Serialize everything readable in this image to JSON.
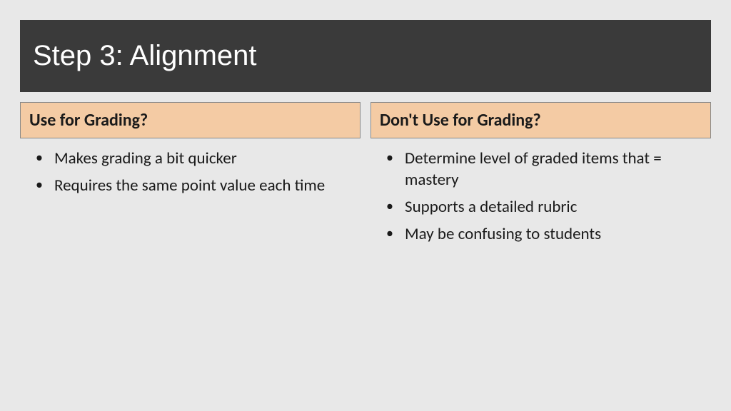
{
  "slide": {
    "title": "Step 3:  Alignment",
    "background_color": "#e8e8e8",
    "title_bar_color": "#3a3a3a",
    "title_text_color": "#ffffff",
    "title_fontsize": 40,
    "header_fill_color": "#f4cba4",
    "header_border_color": "#888888",
    "header_fontsize": 24,
    "body_text_color": "#1a1a1a",
    "body_fontsize": 23,
    "columns": [
      {
        "header": "Use for Grading?",
        "bullets": [
          "Makes grading a bit quicker",
          "Requires the same point value each time"
        ]
      },
      {
        "header": "Don't Use for Grading?",
        "bullets": [
          "Determine level of graded items that = mastery",
          "Supports a detailed rubric",
          "May be confusing to students"
        ]
      }
    ]
  }
}
